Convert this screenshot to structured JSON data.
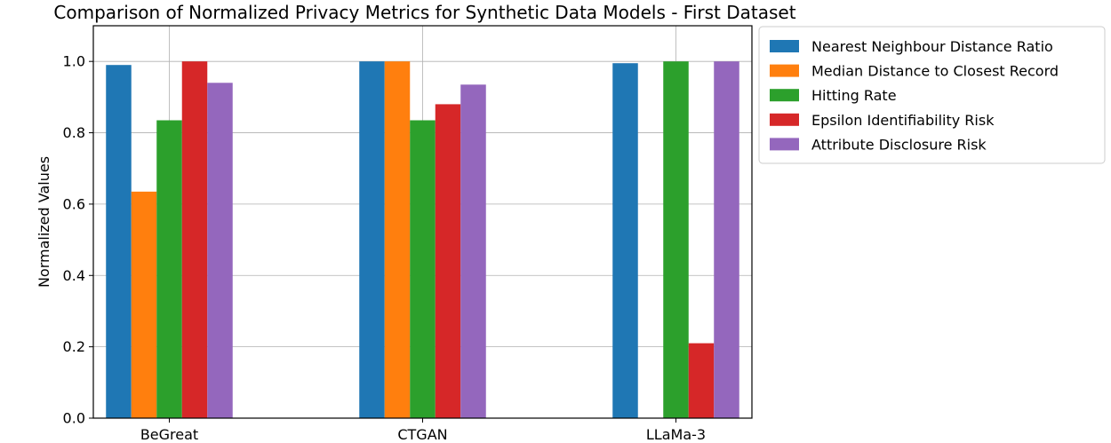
{
  "chart_data": {
    "type": "bar",
    "title": "Comparison of Normalized Privacy Metrics for Synthetic Data Models - First Dataset",
    "xlabel": "",
    "ylabel": "Normalized Values",
    "ylim": [
      0,
      1.1
    ],
    "yticks": [
      0.0,
      0.2,
      0.4,
      0.6,
      0.8,
      1.0
    ],
    "ytick_labels": [
      "0.0",
      "0.2",
      "0.4",
      "0.6",
      "0.8",
      "1.0"
    ],
    "categories": [
      "BeGreat",
      "CTGAN",
      "LLaMa-3"
    ],
    "grid": true,
    "legend_position": "outside-right-top",
    "series": [
      {
        "name": "Nearest Neighbour Distance Ratio",
        "color": "#1f77b4",
        "values": [
          0.99,
          1.0,
          0.995
        ]
      },
      {
        "name": "Median Distance to Closest Record",
        "color": "#ff7f0e",
        "values": [
          0.635,
          1.0,
          0.0
        ]
      },
      {
        "name": "Hitting Rate",
        "color": "#2ca02c",
        "values": [
          0.835,
          0.835,
          1.0
        ]
      },
      {
        "name": "Epsilon Identifiability Risk",
        "color": "#d62728",
        "values": [
          1.0,
          0.88,
          0.21
        ]
      },
      {
        "name": "Attribute Disclosure Risk",
        "color": "#9467bd",
        "values": [
          0.94,
          0.935,
          1.0
        ]
      }
    ]
  }
}
